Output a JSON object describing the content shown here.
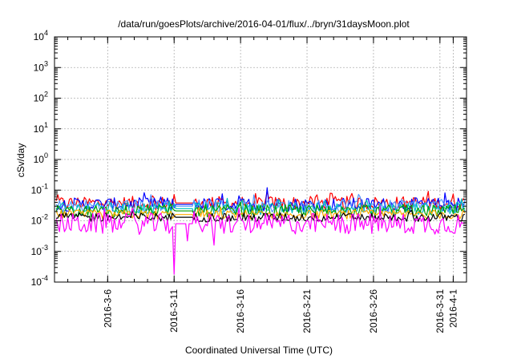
{
  "chart_data": {
    "type": "line",
    "title": "/data/run/goesPlots/archive/2016-04-01/flux/../bryn/31daysMoon.plot",
    "xlabel": "Coordinated Universal Time (UTC)",
    "ylabel": "cSv/day",
    "y_scale": "log",
    "ylim": [
      0.0001,
      10000
    ],
    "y_ticks": [
      {
        "value": 0.0001,
        "base": "10",
        "exp": "-4"
      },
      {
        "value": 0.001,
        "base": "10",
        "exp": "-3"
      },
      {
        "value": 0.01,
        "base": "10",
        "exp": "-2"
      },
      {
        "value": 0.1,
        "base": "10",
        "exp": "-1"
      },
      {
        "value": 1,
        "base": "10",
        "exp": "0"
      },
      {
        "value": 10,
        "base": "10",
        "exp": "1"
      },
      {
        "value": 100,
        "base": "10",
        "exp": "2"
      },
      {
        "value": 1000,
        "base": "10",
        "exp": "3"
      },
      {
        "value": 10000,
        "base": "10",
        "exp": "4"
      }
    ],
    "xlim": [
      "2016-03-02",
      "2016-04-02"
    ],
    "x_ticks": [
      "2016-3-6",
      "2016-3-11",
      "2016-3-16",
      "2016-3-21",
      "2016-3-26",
      "2016-3-31",
      "2016-4-1"
    ],
    "grid": true,
    "series": [
      {
        "color": "#ff0000",
        "base": 0.038,
        "spread": 0.22,
        "spikes": [
          [
            "2016-03-18",
            0.09
          ],
          [
            "2016-04-01",
            0.075
          ]
        ]
      },
      {
        "color": "#0000ff",
        "base": 0.034,
        "spread": 0.22,
        "spikes": [
          [
            "2016-03-18",
            0.12
          ],
          [
            "2016-03-10",
            0.06
          ]
        ]
      },
      {
        "color": "#5599ff",
        "base": 0.03,
        "spread": 0.22,
        "spikes": [
          [
            "2016-03-17",
            0.07
          ]
        ]
      },
      {
        "color": "#00c0c0",
        "base": 0.025,
        "spread": 0.2,
        "spikes": []
      },
      {
        "color": "#00a000",
        "base": 0.021,
        "spread": 0.2,
        "spikes": []
      },
      {
        "color": "#ffaa00",
        "base": 0.016,
        "spread": 0.15,
        "spikes": []
      },
      {
        "color": "#000000",
        "base": 0.013,
        "spread": 0.15,
        "spikes": []
      },
      {
        "color": "#ff00ff",
        "base": 0.008,
        "spread": 0.35,
        "spikes": [
          [
            "2016-03-11",
            0.00018
          ],
          [
            "2016-03-12",
            0.0022
          ],
          [
            "2016-03-14",
            0.0016
          ]
        ]
      }
    ]
  }
}
